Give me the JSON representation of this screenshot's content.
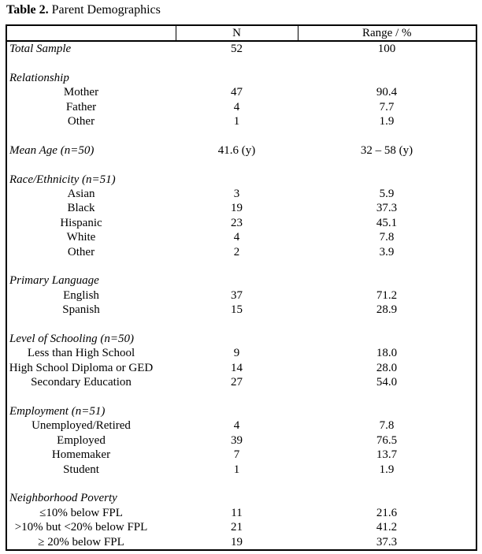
{
  "title": {
    "bold": "Table 2.",
    "rest": " Parent Demographics"
  },
  "table": {
    "columns": [
      "",
      "N",
      "Range / %"
    ],
    "rows": [
      {
        "type": "section",
        "label": "Total Sample",
        "n": "52",
        "range": "100"
      },
      {
        "type": "spacer",
        "label": "",
        "n": "",
        "range": ""
      },
      {
        "type": "section",
        "label": "Relationship",
        "n": "",
        "range": ""
      },
      {
        "type": "item",
        "label": "Mother",
        "n": "47",
        "range": "90.4"
      },
      {
        "type": "item",
        "label": "Father",
        "n": "4",
        "range": "7.7"
      },
      {
        "type": "item",
        "label": "Other",
        "n": "1",
        "range": "1.9"
      },
      {
        "type": "spacer",
        "label": "",
        "n": "",
        "range": ""
      },
      {
        "type": "section",
        "label": "Mean Age (n=50)",
        "n": "41.6 (y)",
        "range": "32 – 58 (y)"
      },
      {
        "type": "spacer",
        "label": "",
        "n": "",
        "range": ""
      },
      {
        "type": "section",
        "label": "Race/Ethnicity (n=51)",
        "n": "",
        "range": ""
      },
      {
        "type": "item",
        "label": "Asian",
        "n": "3",
        "range": "5.9"
      },
      {
        "type": "item",
        "label": "Black",
        "n": "19",
        "range": "37.3"
      },
      {
        "type": "item",
        "label": "Hispanic",
        "n": "23",
        "range": "45.1"
      },
      {
        "type": "item",
        "label": "White",
        "n": "4",
        "range": "7.8"
      },
      {
        "type": "item",
        "label": "Other",
        "n": "2",
        "range": "3.9"
      },
      {
        "type": "spacer",
        "label": "",
        "n": "",
        "range": ""
      },
      {
        "type": "section",
        "label": "Primary Language",
        "n": "",
        "range": ""
      },
      {
        "type": "item",
        "label": "English",
        "n": "37",
        "range": "71.2"
      },
      {
        "type": "item",
        "label": "Spanish",
        "n": "15",
        "range": "28.9"
      },
      {
        "type": "spacer",
        "label": "",
        "n": "",
        "range": ""
      },
      {
        "type": "section",
        "label": "Level of Schooling (n=50)",
        "n": "",
        "range": ""
      },
      {
        "type": "item",
        "label": "Less than High School",
        "n": "9",
        "range": "18.0"
      },
      {
        "type": "item",
        "label": "High School Diploma or GED",
        "n": "14",
        "range": "28.0"
      },
      {
        "type": "item",
        "label": "Secondary Education",
        "n": "27",
        "range": "54.0"
      },
      {
        "type": "spacer",
        "label": "",
        "n": "",
        "range": ""
      },
      {
        "type": "section",
        "label": "Employment (n=51)",
        "n": "",
        "range": ""
      },
      {
        "type": "item",
        "label": "Unemployed/Retired",
        "n": "4",
        "range": "7.8"
      },
      {
        "type": "item",
        "label": "Employed",
        "n": "39",
        "range": "76.5"
      },
      {
        "type": "item",
        "label": "Homemaker",
        "n": "7",
        "range": "13.7"
      },
      {
        "type": "item",
        "label": "Student",
        "n": "1",
        "range": "1.9"
      },
      {
        "type": "spacer",
        "label": "",
        "n": "",
        "range": ""
      },
      {
        "type": "section",
        "label": "Neighborhood Poverty",
        "n": "",
        "range": ""
      },
      {
        "type": "item",
        "label": "≤10% below FPL",
        "n": "11",
        "range": "21.6"
      },
      {
        "type": "item",
        "label": ">10% but <20% below FPL",
        "n": "21",
        "range": "41.2"
      },
      {
        "type": "item",
        "label": "≥ 20% below FPL",
        "n": "19",
        "range": "37.3"
      }
    ]
  }
}
